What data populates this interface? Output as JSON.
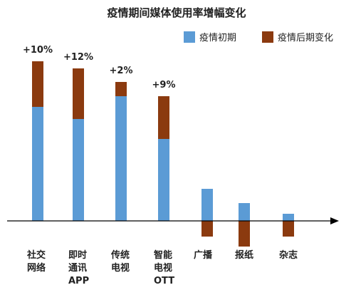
{
  "chart_data": {
    "type": "bar",
    "stacked": true,
    "title": "疫情期间媒体使用率增幅变化",
    "legend_position": "top-right",
    "categories": [
      [
        "社交",
        "网络"
      ],
      [
        "即时",
        "通讯",
        "APP"
      ],
      [
        "传统",
        "电视"
      ],
      [
        "智能",
        "电视",
        "OTT"
      ],
      [
        "广播"
      ],
      [
        "报纸"
      ],
      [
        "杂志"
      ]
    ],
    "series": [
      {
        "name": "疫情初期",
        "color": "#5B9BD5",
        "values": [
          16.0,
          14.3,
          17.5,
          11.5,
          4.5,
          2.5,
          1.0
        ]
      },
      {
        "name": "疫情后期变化",
        "color": "#8B3A0F",
        "values": [
          6.4,
          7.1,
          2.0,
          6.0,
          -2.2,
          -3.6,
          -2.2
        ]
      }
    ],
    "change_labels": [
      "+10%",
      "+12%",
      "+2%",
      "+9%",
      "",
      "",
      ""
    ],
    "grid": false,
    "ylim": [
      -5,
      25
    ]
  }
}
